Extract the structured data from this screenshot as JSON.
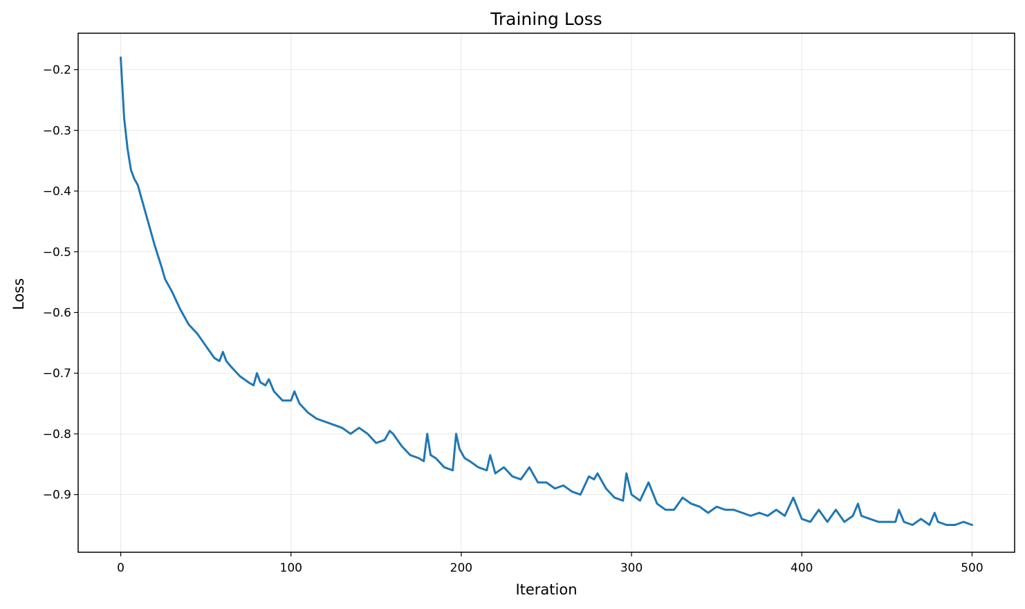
{
  "chart_data": {
    "type": "line",
    "title": "Training Loss",
    "xlabel": "Iteration",
    "ylabel": "Loss",
    "xlim": [
      -25,
      525
    ],
    "ylim": [
      -0.995,
      -0.14
    ],
    "xticks": [
      0,
      100,
      200,
      300,
      400,
      500
    ],
    "yticks": [
      -0.9,
      -0.8,
      -0.7,
      -0.6,
      -0.5,
      -0.4,
      -0.3,
      -0.2
    ],
    "xtick_labels": [
      "0",
      "100",
      "200",
      "300",
      "400",
      "500"
    ],
    "ytick_labels": [
      "−0.9",
      "−0.8",
      "−0.7",
      "−0.6",
      "−0.5",
      "−0.4",
      "−0.3",
      "−0.2"
    ],
    "grid": true,
    "line_color": "#1f77b4",
    "series": [
      {
        "x": [
          0,
          2,
          4,
          6,
          8,
          10,
          15,
          20,
          24,
          26,
          28,
          30,
          35,
          40,
          45,
          50,
          55,
          58,
          60,
          62,
          65,
          70,
          75,
          78,
          80,
          82,
          85,
          87,
          90,
          95,
          100,
          102,
          105,
          110,
          115,
          120,
          125,
          130,
          135,
          140,
          145,
          150,
          155,
          158,
          160,
          165,
          170,
          175,
          178,
          180,
          182,
          185,
          190,
          195,
          197,
          199,
          202,
          205,
          210,
          215,
          217,
          220,
          225,
          230,
          235,
          240,
          245,
          250,
          255,
          260,
          265,
          270,
          275,
          278,
          280,
          285,
          290,
          295,
          297,
          300,
          305,
          310,
          315,
          320,
          325,
          330,
          335,
          340,
          345,
          350,
          355,
          360,
          365,
          370,
          375,
          380,
          385,
          390,
          395,
          400,
          405,
          410,
          415,
          420,
          425,
          430,
          433,
          435,
          440,
          445,
          450,
          455,
          457,
          460,
          465,
          470,
          475,
          478,
          480,
          485,
          490,
          495,
          500
        ],
        "y": [
          -0.18,
          -0.28,
          -0.33,
          -0.365,
          -0.38,
          -0.39,
          -0.44,
          -0.49,
          -0.525,
          -0.545,
          -0.555,
          -0.565,
          -0.595,
          -0.62,
          -0.635,
          -0.655,
          -0.675,
          -0.68,
          -0.665,
          -0.68,
          -0.69,
          -0.705,
          -0.715,
          -0.72,
          -0.7,
          -0.715,
          -0.72,
          -0.71,
          -0.73,
          -0.745,
          -0.745,
          -0.73,
          -0.75,
          -0.765,
          -0.775,
          -0.78,
          -0.785,
          -0.79,
          -0.8,
          -0.79,
          -0.8,
          -0.815,
          -0.81,
          -0.795,
          -0.8,
          -0.82,
          -0.835,
          -0.84,
          -0.845,
          -0.8,
          -0.835,
          -0.84,
          -0.855,
          -0.86,
          -0.8,
          -0.825,
          -0.84,
          -0.845,
          -0.855,
          -0.86,
          -0.835,
          -0.865,
          -0.855,
          -0.87,
          -0.875,
          -0.855,
          -0.88,
          -0.88,
          -0.89,
          -0.885,
          -0.895,
          -0.9,
          -0.87,
          -0.875,
          -0.865,
          -0.89,
          -0.905,
          -0.91,
          -0.865,
          -0.9,
          -0.91,
          -0.88,
          -0.915,
          -0.925,
          -0.925,
          -0.905,
          -0.915,
          -0.92,
          -0.93,
          -0.92,
          -0.925,
          -0.925,
          -0.93,
          -0.935,
          -0.93,
          -0.935,
          -0.925,
          -0.935,
          -0.905,
          -0.94,
          -0.945,
          -0.925,
          -0.945,
          -0.925,
          -0.945,
          -0.935,
          -0.915,
          -0.935,
          -0.94,
          -0.945,
          -0.945,
          -0.945,
          -0.925,
          -0.945,
          -0.95,
          -0.94,
          -0.95,
          -0.93,
          -0.945,
          -0.95,
          -0.95,
          -0.945,
          -0.95
        ]
      }
    ]
  }
}
